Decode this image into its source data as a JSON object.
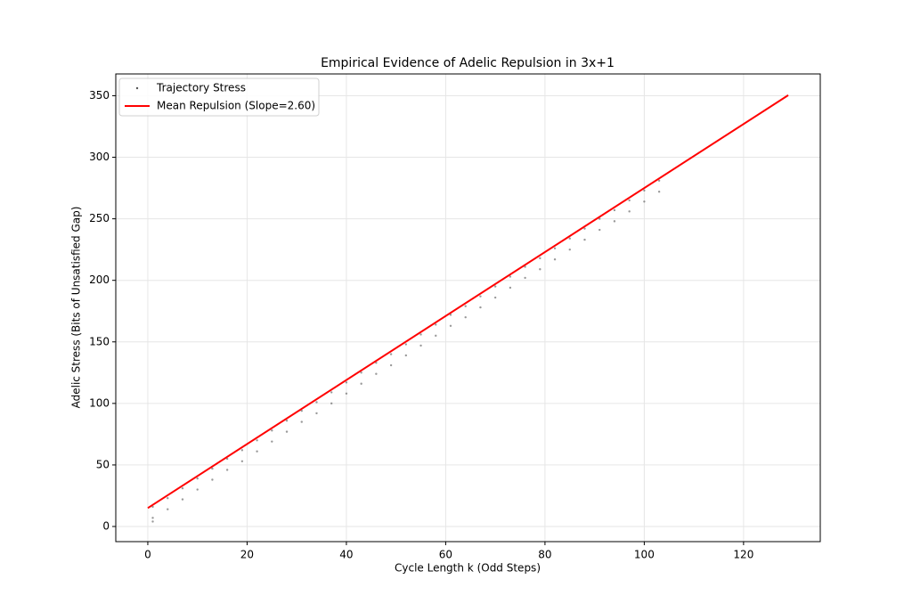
{
  "chart_data": {
    "type": "scatter",
    "title": "Empirical Evidence of Adelic Repulsion in 3x+1",
    "x_label": "Cycle Length k (Odd Steps)",
    "y_label": "Adelic Stress (Bits of Unsatisfied Gap)",
    "xlim": [
      -6.45,
      135.45
    ],
    "ylim": [
      -12.3,
      367.7
    ],
    "xticks": [
      0,
      20,
      40,
      60,
      80,
      100,
      120
    ],
    "yticks": [
      0,
      50,
      100,
      150,
      200,
      250,
      300,
      350
    ],
    "grid": true,
    "legend": "upper-left",
    "series": [
      {
        "name": "Trajectory Stress",
        "type": "scatter",
        "color": "#555555",
        "x": [
          1,
          1,
          1,
          4,
          4,
          7,
          7,
          10,
          10,
          13,
          13,
          16,
          16,
          19,
          19,
          22,
          22,
          25,
          25,
          28,
          28,
          31,
          31,
          34,
          34,
          37,
          37,
          40,
          40,
          43,
          43,
          46,
          46,
          49,
          49,
          52,
          52,
          55,
          55,
          58,
          58,
          61,
          61,
          64,
          64,
          67,
          67,
          70,
          70,
          73,
          73,
          76,
          76,
          79,
          79,
          82,
          82,
          85,
          85,
          88,
          88,
          91,
          91,
          94,
          94,
          97,
          97,
          100,
          100,
          103,
          103
        ],
        "values": [
          16,
          7,
          4,
          23,
          14,
          31,
          22,
          39,
          30,
          47,
          38,
          55,
          46,
          62,
          53,
          70,
          61,
          78,
          69,
          86,
          77,
          94,
          85,
          101,
          92,
          109,
          100,
          117,
          108,
          125,
          116,
          133,
          124,
          140,
          131,
          148,
          139,
          156,
          147,
          164,
          155,
          172,
          163,
          179,
          170,
          187,
          178,
          195,
          186,
          203,
          194,
          211,
          202,
          218,
          209,
          226,
          217,
          234,
          225,
          242,
          233,
          250,
          241,
          257,
          248,
          265,
          256,
          273,
          264,
          281,
          272
        ]
      },
      {
        "name": "Mean Repulsion (Slope=2.60)",
        "type": "line",
        "color": "#ff0000",
        "x": [
          0,
          129
        ],
        "values": [
          15,
          350.4
        ]
      }
    ]
  }
}
